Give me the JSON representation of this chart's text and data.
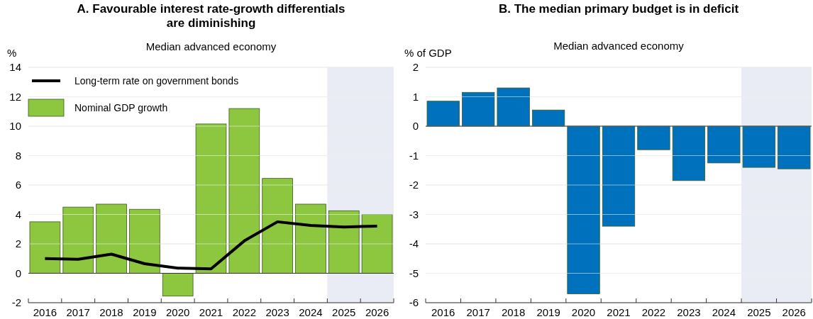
{
  "chart_data": [
    {
      "type": "bar",
      "title": "A. Favourable interest rate-growth differentials are diminishing",
      "subtitle": "Median advanced economy",
      "ylabel": "%",
      "categories": [
        "2016",
        "2017",
        "2018",
        "2019",
        "2020",
        "2021",
        "2022",
        "2023",
        "2024",
        "2025",
        "2026"
      ],
      "series": [
        {
          "name": "Nominal GDP growth",
          "type": "bar",
          "color": "#8dc63f",
          "values": [
            3.5,
            4.5,
            4.7,
            4.35,
            -1.55,
            10.15,
            11.2,
            6.45,
            4.7,
            4.25,
            4.0
          ]
        },
        {
          "name": "Long-term rate on government bonds",
          "type": "line",
          "color": "#000000",
          "values": [
            1.0,
            0.95,
            1.3,
            0.65,
            0.35,
            0.3,
            2.2,
            3.5,
            3.25,
            3.15,
            3.2
          ]
        }
      ],
      "ylim": [
        -2,
        14
      ],
      "yticks": [
        -2,
        0,
        2,
        4,
        6,
        8,
        10,
        12,
        14
      ],
      "grid": "y",
      "legend": "top left",
      "marker": "none",
      "line_style": "solid",
      "bands": [
        {
          "axis": "x",
          "from": "2025",
          "to": "2026",
          "color": "#e9ebf5"
        }
      ]
    },
    {
      "type": "bar",
      "title": "B. The median primary budget is in deficit",
      "subtitle": "Median advanced economy",
      "ylabel": "% of GDP",
      "categories": [
        "2016",
        "2017",
        "2018",
        "2019",
        "2020",
        "2021",
        "2022",
        "2023",
        "2024",
        "2025",
        "2026"
      ],
      "values": [
        0.85,
        1.15,
        1.3,
        0.55,
        -5.7,
        -3.4,
        -0.8,
        -1.85,
        -1.25,
        -1.4,
        -1.45
      ],
      "color": "#0071bc",
      "ylim": [
        -6,
        2
      ],
      "yticks": [
        -6,
        -5,
        -4,
        -3,
        -2,
        -1,
        0,
        1,
        2
      ],
      "grid": "y",
      "bands": [
        {
          "axis": "x",
          "from": "2025",
          "to": "2026",
          "color": "#e9ebf5"
        }
      ]
    }
  ]
}
